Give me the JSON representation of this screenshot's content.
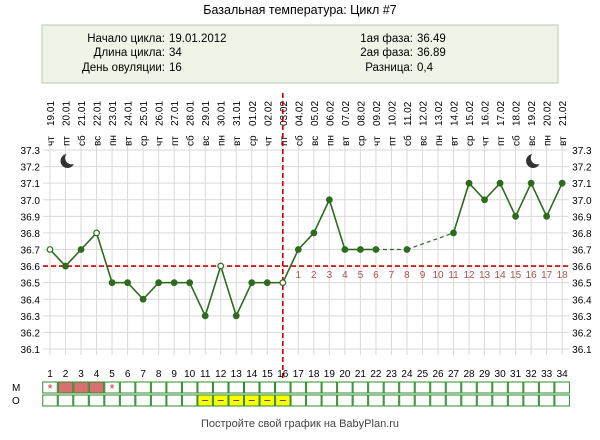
{
  "chart_data": {
    "type": "line",
    "title": "Базальная температура: Цикл #7",
    "info": {
      "cycle_start_label": "Начало цикла:",
      "cycle_start_value": "19.01.2012",
      "cycle_length_label": "Длина цикла:",
      "cycle_length_value": "34",
      "ovulation_day_label": "День овуляции:",
      "ovulation_day_value": "16",
      "phase1_label": "1ая фаза:",
      "phase1_value": "36.49",
      "phase2_label": "2ая фаза:",
      "phase2_value": "36.89",
      "difference_label": "Разница:",
      "difference_value": "0,4"
    },
    "ylim": [
      36.1,
      37.3
    ],
    "yticks": [
      "37.3",
      "37.2",
      "37.1",
      "37.0",
      "36.9",
      "36.8",
      "36.7",
      "36.6",
      "36.5",
      "36.4",
      "36.3",
      "36.2",
      "36.1"
    ],
    "day_numbers": [
      "1",
      "2",
      "3",
      "4",
      "5",
      "6",
      "7",
      "8",
      "9",
      "10",
      "11",
      "12",
      "13",
      "14",
      "15",
      "16",
      "17",
      "18",
      "19",
      "20",
      "21",
      "22",
      "23",
      "24",
      "25",
      "26",
      "27",
      "28",
      "29",
      "30",
      "31",
      "32",
      "33",
      "34"
    ],
    "dates": [
      "19.01",
      "20.01",
      "21.01",
      "22.01",
      "23.01",
      "24.01",
      "25.01",
      "26.01",
      "27.01",
      "28.01",
      "29.01",
      "30.01",
      "31.01",
      "01.02",
      "02.02",
      "03.02",
      "04.02",
      "05.02",
      "06.02",
      "07.02",
      "08.02",
      "09.02",
      "10.02",
      "11.02",
      "12.02",
      "13.02",
      "14.02",
      "15.02",
      "16.02",
      "17.02",
      "18.02",
      "19.02",
      "20.02",
      "21.02"
    ],
    "weekdays": [
      "чт",
      "пт",
      "сб",
      "вс",
      "пн",
      "вт",
      "ср",
      "чт",
      "пт",
      "сб",
      "вс",
      "пн",
      "вт",
      "ср",
      "чт",
      "пт",
      "сб",
      "вс",
      "пн",
      "вт",
      "ср",
      "чт",
      "пт",
      "сб",
      "вс",
      "пн",
      "вт",
      "ср",
      "чт",
      "пт",
      "сб",
      "вс",
      "пн",
      "вт"
    ],
    "series": [
      {
        "values": [
          36.7,
          36.6,
          36.7,
          36.8,
          36.5,
          36.5,
          36.4,
          36.5,
          36.5,
          36.5,
          36.3,
          36.6,
          36.3,
          36.5,
          36.5,
          36.5,
          36.7,
          36.8,
          37.0,
          36.7,
          36.7,
          36.7,
          null,
          36.7,
          null,
          null,
          36.8,
          37.1,
          37.0,
          37.1,
          36.9,
          37.1,
          36.9,
          37.1
        ],
        "hollow_days": [
          1,
          4,
          12,
          16
        ],
        "color": "#2e6b1f"
      }
    ],
    "coverline": 36.6,
    "coverline_color": "#cc0000",
    "ovulation_day": 16,
    "phase2_counter": [
      "1",
      "2",
      "3",
      "4",
      "5",
      "6",
      "7",
      "8",
      "9",
      "10",
      "11",
      "12",
      "13",
      "14",
      "15",
      "16",
      "17",
      "18"
    ],
    "phase2_counter_color": "#b05050",
    "moon_days": [
      2,
      32
    ],
    "row_labels": [
      "М",
      "О"
    ],
    "m_row": {
      "stars_days": [
        1,
        5
      ],
      "red_fill_days": [
        2,
        3,
        4
      ],
      "red_color": "#d97070"
    },
    "o_row": {
      "yellow_days": [
        11,
        12,
        13,
        14,
        15,
        16
      ],
      "yellow_color": "#ffff00"
    },
    "grid": true,
    "colors": {
      "grid": "#d9d9d9",
      "cell_border": "#2e8b2e",
      "info_bg": "#eef5e8",
      "info_border": "#b8c8b0"
    }
  },
  "footer": {
    "text": "Постройте свой график на BabyPlan.ru"
  }
}
